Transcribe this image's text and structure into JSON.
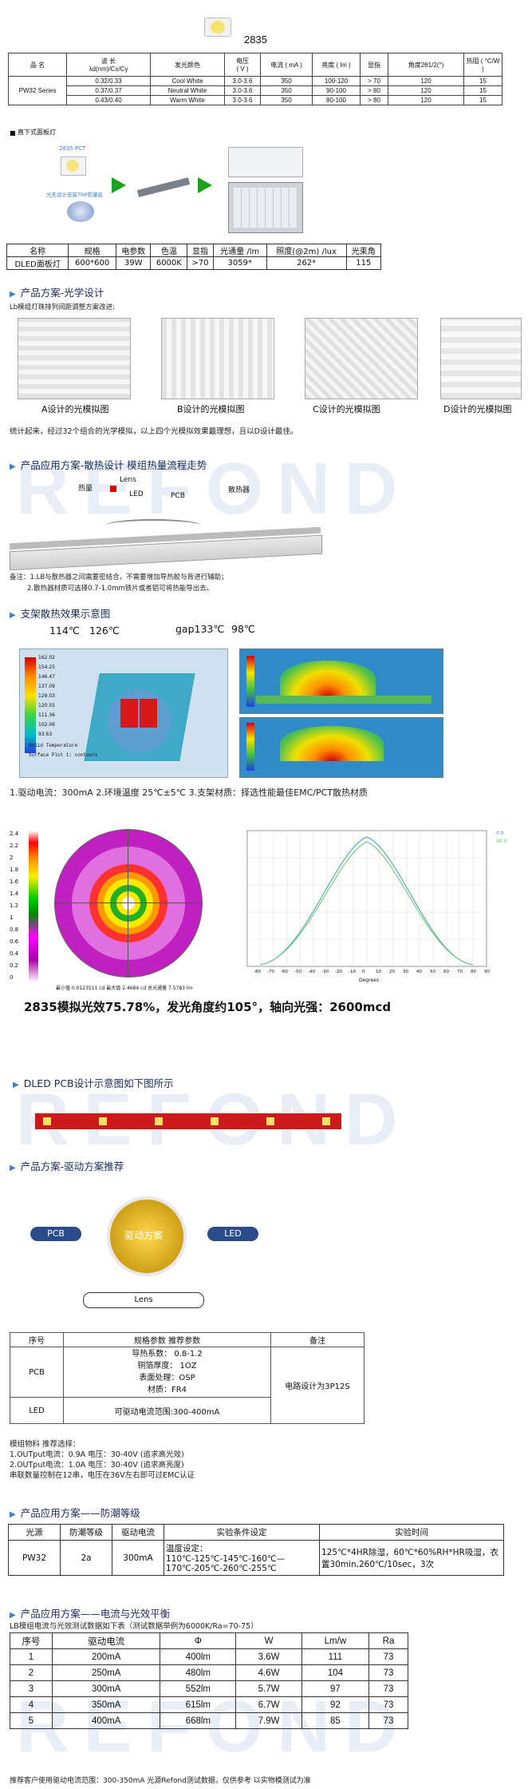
{
  "header": {
    "model": "2835"
  },
  "spec_table": {
    "col_product": "品  名",
    "col_wavelength_1": "波  长",
    "col_wavelength_2": "λd(nm)/Cx/Cy",
    "col_color": "发光颜色",
    "col_voltage_1": "电压",
    "col_voltage_2": "( V )",
    "col_current": "电流 ( mA )",
    "col_flux": "亮度 ( lm )",
    "col_ra": "显指",
    "col_angle": "角度2θ1/2(°)",
    "col_thermal": "热阻 ( °C/W )",
    "series": "PW32 Series",
    "rows": [
      {
        "wl": "0.32/0.33",
        "color": "Cool White",
        "voltage": "3.0-3.6",
        "current": "350",
        "flux": "100-120",
        "ra": "> 70",
        "angle": "120",
        "thermal": "15"
      },
      {
        "wl": "0.37/0.37",
        "color": "Neutral White",
        "voltage": "3.0-3.6",
        "current": "350",
        "flux": "90-100",
        "ra": "> 80",
        "angle": "120",
        "thermal": "15"
      },
      {
        "wl": "0.43/0.40",
        "color": "Warm White",
        "voltage": "3.0-3.6",
        "current": "350",
        "flux": "80-100",
        "ra": "> 80",
        "angle": "120",
        "thermal": "15"
      }
    ]
  },
  "panel_section": {
    "title": "直下式面板灯",
    "label_1": "2835 PCT",
    "label_2": "光先设计安装TRP防爆底"
  },
  "panel_table": {
    "headers": [
      "名称",
      "规格",
      "电参数",
      "色温",
      "显指",
      "光通量 /lm",
      "照度(@2m) /lux",
      "光束角"
    ],
    "row": [
      "DLED面板灯",
      "600*600",
      "39W",
      "6000K",
      ">70",
      "3059*",
      "262*",
      "115"
    ]
  },
  "optics": {
    "title": "产品方案-光学设计",
    "subtitle": "Lb模组灯珠排列间距调整方案改进:",
    "captions": [
      "A设计的光模拟图",
      "B设计的光模拟图",
      "C设计的光模拟图",
      "D设计的光模拟图"
    ],
    "summary": "统计起来，经过32个组合的光学模拟，以上四个光模拟效果最理想，且以D设计最佳。"
  },
  "thermal": {
    "title": "产品应用方案-散热设计   模组热量流程走势",
    "labels": {
      "heat": "热量",
      "lens": "Lens",
      "led": "LED",
      "pcb": "PCB",
      "sink": "散热器"
    },
    "notes": [
      "备注：1.LB与散热器之间需要密结合，不需要增加导热胶与背进行辅助；",
      "2.散热器材质可选择0.7-1.0mm铁片或者铝可将热能导出去。"
    ]
  },
  "bracket": {
    "title": "支架散热效果示意图",
    "temps": [
      "114℃",
      "126℃",
      "gap133℃",
      "98℃"
    ],
    "legend": [
      "162.02",
      "154.25",
      "146.47",
      "137.09",
      "129.03",
      "120.55",
      "111.36",
      "102.06",
      "93.63"
    ],
    "legend_caption_1": "Solid Temperature",
    "legend_caption_2": "Surface Plot 1: contours",
    "conditions": "1.驱动电流：300mA  2.环境温度 25℃±5℃  3.支架材质：择选性能最佳EMC/PCT散热材质"
  },
  "polar_scale": [
    "2.4",
    "2.2",
    "2",
    "1.8",
    "1.6",
    "1.4",
    "1.2",
    "1",
    "0.8",
    "0.6",
    "0.4",
    "0.2",
    "0"
  ],
  "polar_caption": "最小值 0.0123511 cd  最大值 2.4684 cd  总光通量 7.5783 lm",
  "curve_x_ticks": [
    "-80",
    "-70",
    "-60",
    "-50",
    "-40",
    "-30",
    "-20",
    "-10",
    "0",
    "10",
    "20",
    "30",
    "40",
    "50",
    "60",
    "70",
    "80",
    "90"
  ],
  "curve_legend": [
    "0.0",
    "90.0"
  ],
  "curve_caption": "Degrees",
  "result": {
    "prefix": "2835模拟光效",
    "efficacy": "75.78%",
    "mid1": "，发光角度约",
    "angle": "105°",
    "mid2": "，轴向光强：",
    "intensity": "2600mcd"
  },
  "pcb_section": {
    "title": "DLED PCB设计示意图如下图所示"
  },
  "drive": {
    "title": "产品方案-驱动方案推荐",
    "center": "驱动方案",
    "pcb": "PCB",
    "led": "LED",
    "lens": "Lens",
    "table_headers": [
      "序号",
      "规格参数 推荐参数",
      "备注"
    ],
    "pcb_label": "PCB",
    "pcb_params": [
      "导热系数： 0.8-1.2",
      "铜箔厚度： 1OZ",
      "表面处理：OSP",
      "材质：FR4"
    ],
    "pcb_note": "电路设计为3P12S",
    "led_label": "LED",
    "led_params": "可驱动电流范围:300-400mA",
    "recommend": [
      "模组物料 推荐选择：",
      "1.OUTput电流：0.9A 电压：30-40V (追求高光效)",
      "2.OUTput电流：1.0A 电压：30-40V (追求高亮度)",
      "串联数量控制在12串，电压在36V左右即可过EMC认证"
    ]
  },
  "protect": {
    "title": "产品应用方案——防潮等级",
    "headers": [
      "光源",
      "防潮等级",
      "驱动电流",
      "实验条件设定",
      "实验时间"
    ],
    "row": [
      "PW32",
      "2a",
      "300mA",
      "温度设定：110℃-125℃-145℃-160℃—170℃-205℃-260℃-255℃",
      "125℃*4HR除湿，60℃*60%RH*HR吸湿，衣置30min,260℃/10sec，3次"
    ]
  },
  "balance": {
    "title": "产品应用方案——电流与光效平衡",
    "subtitle": "LB模组电流与光效测试数据如下表（测试数据举例为6000K/Ra=70-75）",
    "headers": [
      "序号",
      "驱动电流",
      "Φ",
      "W",
      "Lm/w",
      "Ra"
    ],
    "rows": [
      [
        "1",
        "200mA",
        "400lm",
        "3.6W",
        "111",
        "73"
      ],
      [
        "2",
        "250mA",
        "480lm",
        "4.6W",
        "104",
        "73"
      ],
      [
        "3",
        "300mA",
        "552lm",
        "5.7W",
        "97",
        "73"
      ],
      [
        "4",
        "350mA",
        "615lm",
        "6.7W",
        "92",
        "73"
      ],
      [
        "5",
        "400mA",
        "668lm",
        "7.9W",
        "85",
        "73"
      ]
    ],
    "footer": "推荐客户使用驱动电流范围：300-350mA 光源Refond测试数据，仅供参考 以实物模测试为准"
  },
  "watermark": "REFOND",
  "colors": {
    "accent": "#3a7fd0",
    "red": "#d40000",
    "gold": "#e0b000",
    "pill_blue": "#2a4c8a"
  }
}
